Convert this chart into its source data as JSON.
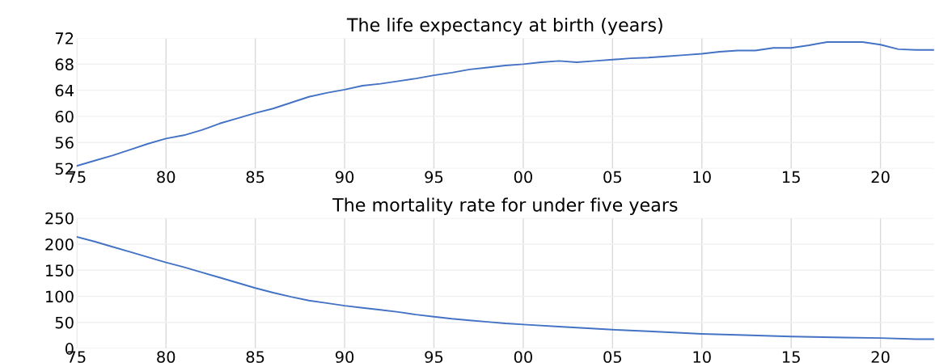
{
  "chart_data": [
    {
      "type": "line",
      "title": "The life expectancy at birth (years)",
      "x": [
        1975,
        1976,
        1977,
        1978,
        1979,
        1980,
        1981,
        1982,
        1983,
        1984,
        1985,
        1986,
        1987,
        1988,
        1989,
        1990,
        1991,
        1992,
        1993,
        1994,
        1995,
        1996,
        1997,
        1998,
        1999,
        2000,
        2001,
        2002,
        2003,
        2004,
        2005,
        2006,
        2007,
        2008,
        2009,
        2010,
        2011,
        2012,
        2013,
        2014,
        2015,
        2016,
        2017,
        2018,
        2019,
        2020,
        2021,
        2022,
        2023
      ],
      "series": [
        {
          "color": "#4472c4",
          "values": [
            52.4,
            53.2,
            54.0,
            54.9,
            55.8,
            56.6,
            57.1,
            57.9,
            58.9,
            59.7,
            60.5,
            61.2,
            62.1,
            63.0,
            63.6,
            64.1,
            64.7,
            65.0,
            65.4,
            65.8,
            66.3,
            66.7,
            67.2,
            67.5,
            67.8,
            68.0,
            68.3,
            68.5,
            68.3,
            68.5,
            68.7,
            68.9,
            69.0,
            69.2,
            69.4,
            69.6,
            69.9,
            70.1,
            70.1,
            70.5,
            70.5,
            70.9,
            71.4,
            71.4,
            71.4,
            71.0,
            70.3,
            70.2,
            70.2
          ]
        }
      ],
      "xlim": [
        1975,
        2023
      ],
      "xticks": [
        {
          "value": 1975,
          "label": "75"
        },
        {
          "value": 1980,
          "label": "80"
        },
        {
          "value": 1985,
          "label": "85"
        },
        {
          "value": 1990,
          "label": "90"
        },
        {
          "value": 1995,
          "label": "95"
        },
        {
          "value": 2000,
          "label": "00"
        },
        {
          "value": 2005,
          "label": "05"
        },
        {
          "value": 2010,
          "label": "10"
        },
        {
          "value": 2015,
          "label": "15"
        },
        {
          "value": 2020,
          "label": "20"
        }
      ],
      "ylim": [
        52,
        72
      ],
      "yticks": [
        52,
        56,
        60,
        64,
        68,
        72
      ],
      "grid": true
    },
    {
      "type": "line",
      "title": "The mortality rate for under five years",
      "x": [
        1975,
        1976,
        1977,
        1978,
        1979,
        1980,
        1981,
        1982,
        1983,
        1984,
        1985,
        1986,
        1987,
        1988,
        1989,
        1990,
        1991,
        1992,
        1993,
        1994,
        1995,
        1996,
        1997,
        1998,
        1999,
        2000,
        2002,
        2005,
        2007,
        2010,
        2012,
        2015,
        2018,
        2020,
        2022,
        2023
      ],
      "series": [
        {
          "color": "#4472c4",
          "values": [
            214,
            205,
            195,
            185,
            175,
            165,
            156,
            146,
            136,
            126,
            116,
            107,
            99,
            92,
            87,
            82,
            78,
            74,
            70,
            65,
            61,
            57,
            54,
            51,
            48,
            46,
            42,
            36,
            33,
            28,
            26,
            23,
            21,
            20,
            18,
            18
          ]
        }
      ],
      "xlim": [
        1975,
        2023
      ],
      "xticks": [
        {
          "value": 1975,
          "label": "75"
        },
        {
          "value": 1980,
          "label": "80"
        },
        {
          "value": 1985,
          "label": "85"
        },
        {
          "value": 1990,
          "label": "90"
        },
        {
          "value": 1995,
          "label": "95"
        },
        {
          "value": 2000,
          "label": "00"
        },
        {
          "value": 2005,
          "label": "05"
        },
        {
          "value": 2010,
          "label": "10"
        },
        {
          "value": 2015,
          "label": "15"
        },
        {
          "value": 2020,
          "label": "20"
        }
      ],
      "ylim": [
        0,
        250
      ],
      "yticks": [
        0,
        50,
        100,
        150,
        200,
        250
      ],
      "grid": true
    }
  ]
}
